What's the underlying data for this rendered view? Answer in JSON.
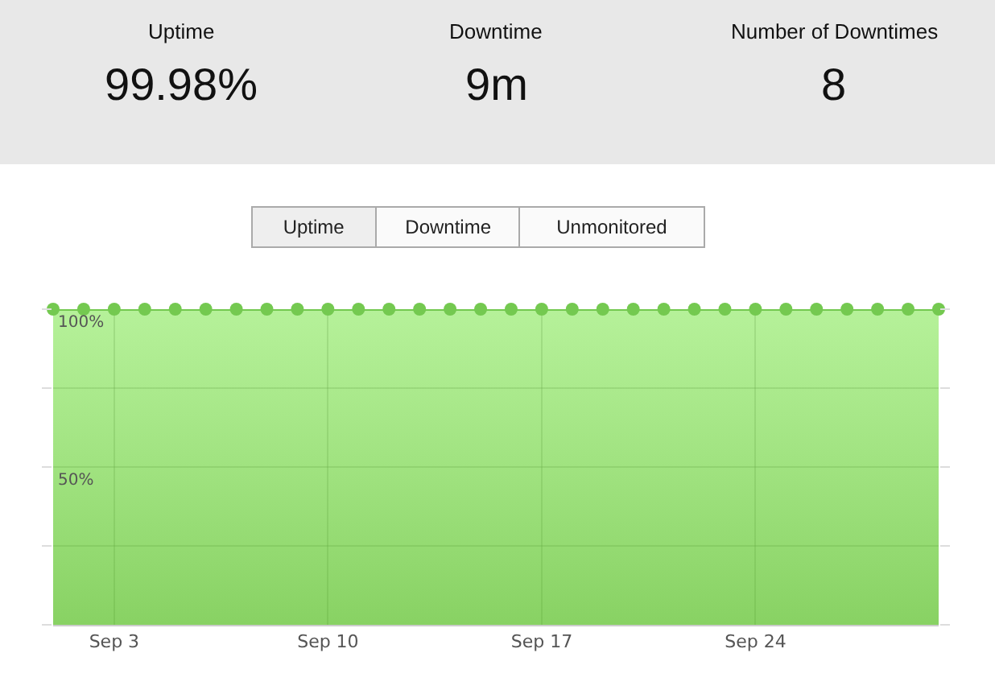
{
  "chart_data": {
    "type": "area",
    "x": [
      "--09-01",
      "--09-02",
      "--09-03",
      "--09-04",
      "--09-05",
      "--09-06",
      "--09-07",
      "--09-08",
      "--09-09",
      "--09-10",
      "--09-11",
      "--09-12",
      "--09-13",
      "--09-14",
      "--09-15",
      "--09-16",
      "--09-17",
      "--09-18",
      "--09-19",
      "--09-20",
      "--09-21",
      "--09-22",
      "--09-23",
      "--09-24",
      "--09-25",
      "--09-26",
      "--09-27",
      "--09-28",
      "--09-29",
      "--09-30"
    ],
    "series": [
      {
        "color": "#74c950",
        "values": [
          100,
          100,
          100,
          100,
          100,
          100,
          100,
          100,
          100,
          100,
          100,
          100,
          100,
          100,
          100,
          100,
          100,
          100,
          100,
          100,
          100,
          100,
          100,
          100,
          100,
          100,
          100,
          100,
          100,
          100
        ]
      }
    ],
    "xlim": [
      "--09-01",
      "--09-30"
    ],
    "xticks": [
      {
        "value": "--09-03",
        "label": "Sep 3"
      },
      {
        "value": "--09-10",
        "label": "Sep 10"
      },
      {
        "value": "--09-17",
        "label": "Sep 17"
      },
      {
        "value": "--09-24",
        "label": "Sep 24"
      }
    ],
    "ylim": [
      0,
      100
    ],
    "yticks": [
      {
        "value": 0,
        "label": null
      },
      {
        "value": 25,
        "label": null
      },
      {
        "value": 50,
        "label": "50%"
      },
      {
        "value": 75,
        "label": null
      },
      {
        "value": 100,
        "label": "100%"
      }
    ],
    "grid": true,
    "marker": "circle",
    "line_style": "solid",
    "annotations": [
      "Uptime",
      "99.98%",
      "Downtime",
      "9m",
      "Number of Downtimes",
      "8",
      "Uptime",
      "Downtime",
      "Unmonitored"
    ]
  }
}
